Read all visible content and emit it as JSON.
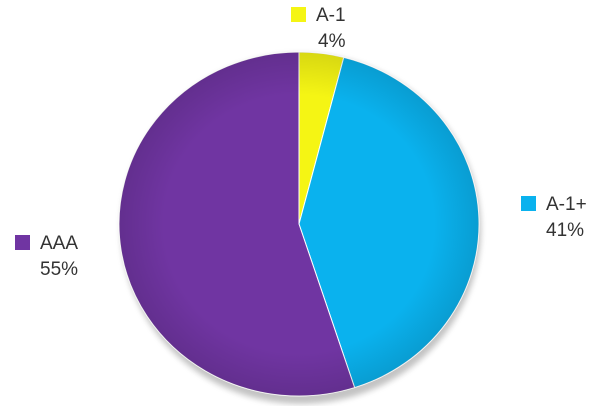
{
  "chart_data": {
    "type": "pie",
    "title": "",
    "slices": [
      {
        "label": "A-1",
        "value": 4,
        "value_label": "4%",
        "color": "#f5f514"
      },
      {
        "label": "A-1+",
        "value": 41,
        "value_label": "41%",
        "color": "#0ab2ee"
      },
      {
        "label": "AAA",
        "value": 55,
        "value_label": "55%",
        "color": "#7035a2"
      }
    ],
    "start_angle": "12 o'clock",
    "direction": "clockwise",
    "legend": "labels beside slices"
  }
}
